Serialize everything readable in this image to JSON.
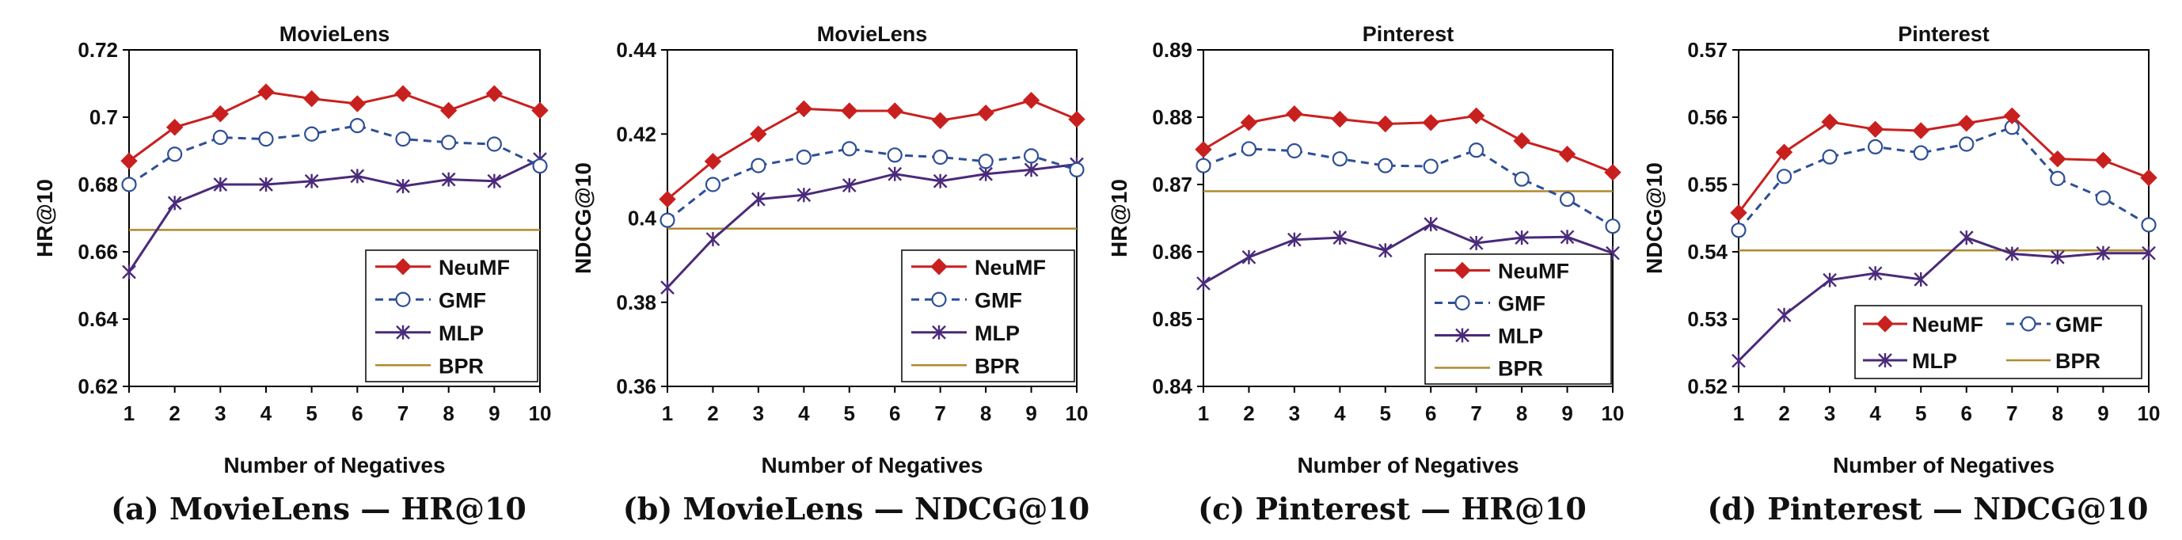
{
  "colors": {
    "NeuMF": "#c8201f",
    "GMF": "#2e4f96",
    "MLP": "#4a2a7a",
    "BPR": "#b08a2e"
  },
  "chart_data": [
    {
      "type": "line",
      "title": "MovieLens",
      "caption": "(a) MovieLens — HR@10",
      "xlabel": "Number of Negatives",
      "ylabel": "HR@10",
      "x": [
        1,
        2,
        3,
        4,
        5,
        6,
        7,
        8,
        9,
        10
      ],
      "ylim": [
        0.62,
        0.72
      ],
      "yticks": [
        "0.62",
        "0.64",
        "0.66",
        "0.68",
        "0.7",
        "0.72"
      ],
      "legend_position": "bottom-right",
      "series": [
        {
          "name": "NeuMF",
          "values": [
            0.687,
            0.697,
            0.701,
            0.7075,
            0.7055,
            0.704,
            0.707,
            0.702,
            0.707,
            0.702
          ]
        },
        {
          "name": "GMF",
          "values": [
            0.68,
            0.689,
            0.694,
            0.6935,
            0.695,
            0.6975,
            0.6935,
            0.6925,
            0.692,
            0.6855
          ]
        },
        {
          "name": "MLP",
          "values": [
            0.654,
            0.6745,
            0.68,
            0.68,
            0.681,
            0.6825,
            0.6795,
            0.6815,
            0.681,
            0.6875
          ]
        },
        {
          "name": "BPR",
          "values": [
            0.6665,
            0.6665,
            0.6665,
            0.6665,
            0.6665,
            0.6665,
            0.6665,
            0.6665,
            0.6665,
            0.6665
          ]
        }
      ]
    },
    {
      "type": "line",
      "title": "MovieLens",
      "caption": "(b) MovieLens — NDCG@10",
      "xlabel": "Number of Negatives",
      "ylabel": "NDCG@10",
      "x": [
        1,
        2,
        3,
        4,
        5,
        6,
        7,
        8,
        9,
        10
      ],
      "ylim": [
        0.36,
        0.44
      ],
      "yticks": [
        "0.36",
        "0.38",
        "0.4",
        "0.42",
        "0.44"
      ],
      "legend_position": "bottom-right",
      "series": [
        {
          "name": "NeuMF",
          "values": [
            0.4045,
            0.4135,
            0.42,
            0.426,
            0.4255,
            0.4255,
            0.4232,
            0.425,
            0.428,
            0.4235
          ]
        },
        {
          "name": "GMF",
          "values": [
            0.3995,
            0.408,
            0.4125,
            0.4145,
            0.4165,
            0.415,
            0.4145,
            0.4135,
            0.4148,
            0.4115
          ]
        },
        {
          "name": "MLP",
          "values": [
            0.3835,
            0.395,
            0.4045,
            0.4055,
            0.4078,
            0.4105,
            0.4088,
            0.4105,
            0.4115,
            0.4128
          ]
        },
        {
          "name": "BPR",
          "values": [
            0.3975,
            0.3975,
            0.3975,
            0.3975,
            0.3975,
            0.3975,
            0.3975,
            0.3975,
            0.3975,
            0.3975
          ]
        }
      ]
    },
    {
      "type": "line",
      "title": "Pinterest",
      "caption": "(c) Pinterest — HR@10",
      "xlabel": "Number of Negatives",
      "ylabel": "HR@10",
      "x": [
        1,
        2,
        3,
        4,
        5,
        6,
        7,
        8,
        9,
        10
      ],
      "ylim": [
        0.84,
        0.89
      ],
      "yticks": [
        "0.84",
        "0.85",
        "0.86",
        "0.87",
        "0.88",
        "0.89"
      ],
      "legend_position": "bottom-right",
      "series": [
        {
          "name": "NeuMF",
          "values": [
            0.8752,
            0.8792,
            0.8805,
            0.8797,
            0.879,
            0.8792,
            0.8802,
            0.8765,
            0.8745,
            0.8718
          ]
        },
        {
          "name": "GMF",
          "values": [
            0.8728,
            0.8753,
            0.875,
            0.8738,
            0.8728,
            0.8727,
            0.8751,
            0.8708,
            0.8678,
            0.8638
          ]
        },
        {
          "name": "MLP",
          "values": [
            0.8553,
            0.8592,
            0.8618,
            0.8621,
            0.8602,
            0.8641,
            0.8613,
            0.8621,
            0.8622,
            0.8598
          ]
        },
        {
          "name": "BPR",
          "values": [
            0.869,
            0.869,
            0.869,
            0.869,
            0.869,
            0.869,
            0.869,
            0.869,
            0.869,
            0.869
          ]
        }
      ]
    },
    {
      "type": "line",
      "title": "Pinterest",
      "caption": "(d) Pinterest — NDCG@10",
      "xlabel": "Number of Negatives",
      "ylabel": "NDCG@10",
      "x": [
        1,
        2,
        3,
        4,
        5,
        6,
        7,
        8,
        9,
        10
      ],
      "ylim": [
        0.52,
        0.57
      ],
      "yticks": [
        "0.52",
        "0.53",
        "0.54",
        "0.55",
        "0.56",
        "0.57"
      ],
      "legend_position": "bottom-right",
      "legend_columns": 2,
      "series": [
        {
          "name": "NeuMF",
          "values": [
            0.5458,
            0.5548,
            0.5593,
            0.5582,
            0.558,
            0.5591,
            0.5602,
            0.5538,
            0.5536,
            0.551
          ]
        },
        {
          "name": "GMF",
          "values": [
            0.5432,
            0.5512,
            0.5541,
            0.5556,
            0.5547,
            0.556,
            0.5585,
            0.5509,
            0.548,
            0.544
          ]
        },
        {
          "name": "MLP",
          "values": [
            0.5238,
            0.5306,
            0.5358,
            0.5368,
            0.5359,
            0.5421,
            0.5397,
            0.5392,
            0.5398,
            0.5398
          ]
        },
        {
          "name": "BPR",
          "values": [
            0.5402,
            0.5402,
            0.5402,
            0.5402,
            0.5402,
            0.5402,
            0.5402,
            0.5402,
            0.5402,
            0.5402
          ]
        }
      ]
    }
  ]
}
